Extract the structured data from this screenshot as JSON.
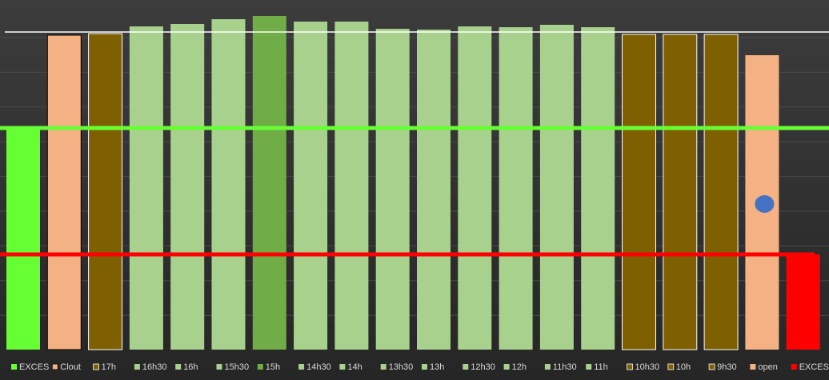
{
  "chart_data": {
    "type": "bar",
    "ylim": [
      0,
      437
    ],
    "series": [
      {
        "name": "EXCES",
        "color": "#66ff33",
        "values": [
          277
        ]
      },
      {
        "name": "Clout",
        "color": "#f4b183",
        "border": "#000000",
        "values": [
          393
        ]
      },
      {
        "name": "17h",
        "color": "#7f6000",
        "border": "#ffffff",
        "values": [
          395
        ]
      },
      {
        "name": "16h30",
        "color": "#a9d18e",
        "values": [
          404
        ]
      },
      {
        "name": "16h",
        "color": "#a9d18e",
        "values": [
          407
        ]
      },
      {
        "name": "15h30",
        "color": "#a9d18e",
        "values": [
          413
        ]
      },
      {
        "name": "15h",
        "color": "#70ad47",
        "values": [
          417
        ]
      },
      {
        "name": "14h30",
        "color": "#a9d18e",
        "values": [
          410
        ]
      },
      {
        "name": "14h",
        "color": "#a9d18e",
        "values": [
          410
        ]
      },
      {
        "name": "13h30",
        "color": "#a9d18e",
        "values": [
          401
        ]
      },
      {
        "name": "13h",
        "color": "#a9d18e",
        "values": [
          400
        ]
      },
      {
        "name": "12h30",
        "color": "#a9d18e",
        "values": [
          404
        ]
      },
      {
        "name": "12h",
        "color": "#a9d18e",
        "values": [
          403
        ]
      },
      {
        "name": "11h30",
        "color": "#a9d18e",
        "values": [
          406
        ]
      },
      {
        "name": "11h",
        "color": "#a9d18e",
        "values": [
          403
        ]
      },
      {
        "name": "10h30",
        "color": "#7f6000",
        "border": "#ffffff",
        "values": [
          394
        ]
      },
      {
        "name": "10h",
        "color": "#7f6000",
        "border": "#ffffff",
        "values": [
          394
        ]
      },
      {
        "name": "9h30",
        "color": "#7f6000",
        "border": "#ffffff",
        "values": [
          394
        ]
      },
      {
        "name": "open",
        "color": "#f4b183",
        "values": [
          368
        ]
      },
      {
        "name": "EXCES",
        "color": "#ff0000",
        "values": [
          119
        ]
      }
    ],
    "lines": [
      {
        "color": "#ffffff",
        "width": 1.5,
        "value": 397
      },
      {
        "color": "#66ff33",
        "width": 5,
        "value": 277
      },
      {
        "color": "#ff0000",
        "width": 5,
        "value": 119
      }
    ],
    "point": {
      "color": "#4472c4",
      "value": 182
    }
  }
}
